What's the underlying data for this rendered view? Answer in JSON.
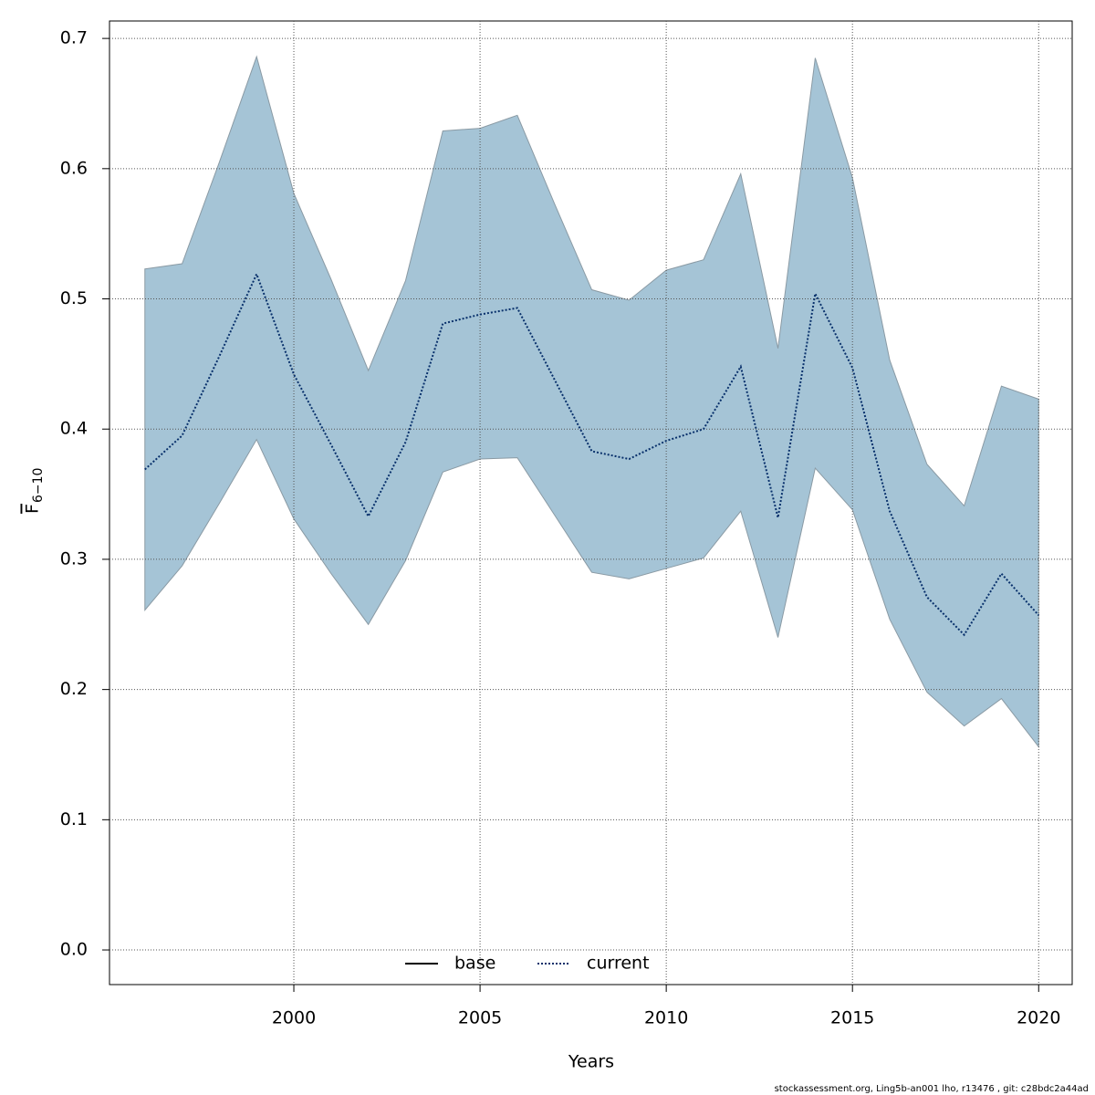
{
  "chart_data": {
    "type": "line",
    "xlabel": "Years",
    "ylabel": "F",
    "ylabel_sub": "6−10",
    "footer": "stockassessment.org, Ling5b-an001 lho, r13476 , git: c28bdc2a44ad",
    "x": [
      1996,
      1997,
      1998,
      1999,
      2000,
      2001,
      2002,
      2003,
      2004,
      2005,
      2006,
      2007,
      2008,
      2009,
      2010,
      2011,
      2012,
      2013,
      2014,
      2015,
      2016,
      2017,
      2018,
      2019,
      2020
    ],
    "series": [
      {
        "name": "current",
        "color": "#08306b",
        "style": "dotted",
        "values": [
          0.369,
          0.395,
          0.456,
          0.519,
          0.442,
          0.388,
          0.333,
          0.39,
          0.481,
          0.488,
          0.493,
          0.438,
          0.383,
          0.377,
          0.391,
          0.4,
          0.448,
          0.332,
          0.504,
          0.447,
          0.337,
          0.271,
          0.242,
          0.289,
          0.257
        ]
      }
    ],
    "band": {
      "color": "#a5c4d6",
      "upper": [
        0.523,
        0.527,
        0.605,
        0.686,
        0.581,
        0.515,
        0.445,
        0.514,
        0.629,
        0.631,
        0.641,
        0.573,
        0.507,
        0.499,
        0.522,
        0.53,
        0.596,
        0.462,
        0.685,
        0.593,
        0.453,
        0.373,
        0.341,
        0.433,
        0.423
      ],
      "lower": [
        0.261,
        0.295,
        0.343,
        0.392,
        0.331,
        0.289,
        0.25,
        0.299,
        0.367,
        0.377,
        0.378,
        0.334,
        0.29,
        0.285,
        0.293,
        0.301,
        0.337,
        0.24,
        0.37,
        0.338,
        0.254,
        0.198,
        0.172,
        0.193,
        0.156
      ]
    },
    "legend": [
      {
        "name": "base",
        "color": "#000000",
        "style": "solid"
      },
      {
        "name": "current",
        "color": "#08306b",
        "style": "dotted"
      }
    ],
    "legend_position": "bottom",
    "xlim": [
      1995.05,
      2020.9
    ],
    "ylim": [
      -0.0266,
      0.7134
    ],
    "xticks": [
      2000,
      2005,
      2010,
      2015,
      2020
    ],
    "yticks": [
      {
        "value": 0,
        "label": "0.0"
      },
      0.1,
      0.2,
      0.3,
      0.4,
      0.5,
      0.6,
      0.7
    ],
    "grid": true
  }
}
